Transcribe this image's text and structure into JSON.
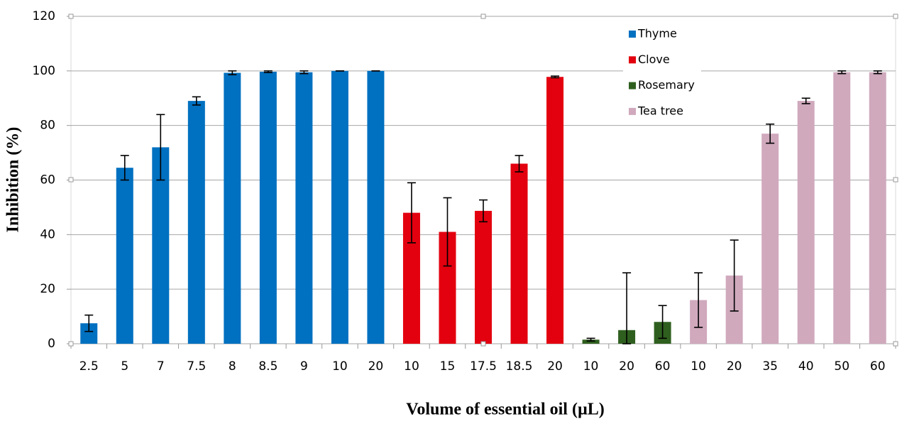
{
  "chart_data": {
    "type": "bar",
    "x_label": "Volume of essential oil (µL)",
    "y_label": "Inhibition  (%)",
    "categories": [
      "2.5",
      "5",
      "7",
      "7.5",
      "8",
      "8.5",
      "9",
      "10",
      "20",
      "10",
      "15",
      "17.5",
      "18.5",
      "20",
      "10",
      "20",
      "60",
      "10",
      "20",
      "35",
      "40",
      "50",
      "60"
    ],
    "series": [
      {
        "name": "Thyme",
        "color": "#0070c0",
        "values": [
          7.5,
          64.5,
          72,
          89,
          99.3,
          99.7,
          99.5,
          100,
          100,
          null,
          null,
          null,
          null,
          null,
          null,
          null,
          null,
          null,
          null,
          null,
          null,
          null,
          null
        ],
        "errors": [
          3,
          4.5,
          12,
          1.5,
          0.7,
          0.3,
          0.5,
          0,
          0,
          null,
          null,
          null,
          null,
          null,
          null,
          null,
          null,
          null,
          null,
          null,
          null,
          null,
          null
        ]
      },
      {
        "name": "Clove",
        "color": "#e3000f",
        "values": [
          null,
          null,
          null,
          null,
          null,
          null,
          null,
          null,
          null,
          48,
          41,
          48.7,
          66,
          97.8,
          null,
          null,
          null,
          null,
          null,
          null,
          null,
          null,
          null
        ],
        "errors": [
          null,
          null,
          null,
          null,
          null,
          null,
          null,
          null,
          null,
          11,
          12.5,
          4,
          3,
          0.3,
          null,
          null,
          null,
          null,
          null,
          null,
          null,
          null,
          null
        ]
      },
      {
        "name": "Rosemary",
        "color": "#2f5f1f",
        "values": [
          null,
          null,
          null,
          null,
          null,
          null,
          null,
          null,
          null,
          null,
          null,
          null,
          null,
          null,
          1.5,
          5,
          8,
          null,
          null,
          null,
          null,
          null,
          null
        ],
        "errors": [
          null,
          null,
          null,
          null,
          null,
          null,
          null,
          null,
          null,
          null,
          null,
          null,
          null,
          null,
          0.5,
          21,
          6,
          null,
          null,
          null,
          null,
          null,
          null
        ]
      },
      {
        "name": "Tea tree",
        "color": "#d0a9bd",
        "values": [
          null,
          null,
          null,
          null,
          null,
          null,
          null,
          null,
          null,
          null,
          null,
          null,
          null,
          null,
          null,
          null,
          null,
          16,
          25,
          77,
          89,
          99.5,
          99.5
        ],
        "errors": [
          null,
          null,
          null,
          null,
          null,
          null,
          null,
          null,
          null,
          null,
          null,
          null,
          null,
          null,
          null,
          null,
          null,
          10,
          13,
          3.5,
          1,
          0.5,
          0.5
        ]
      }
    ],
    "ylim": [
      0,
      120
    ],
    "yticks": [
      0,
      20,
      40,
      60,
      80,
      100,
      120
    ],
    "grid": true,
    "legend": "upper right"
  }
}
